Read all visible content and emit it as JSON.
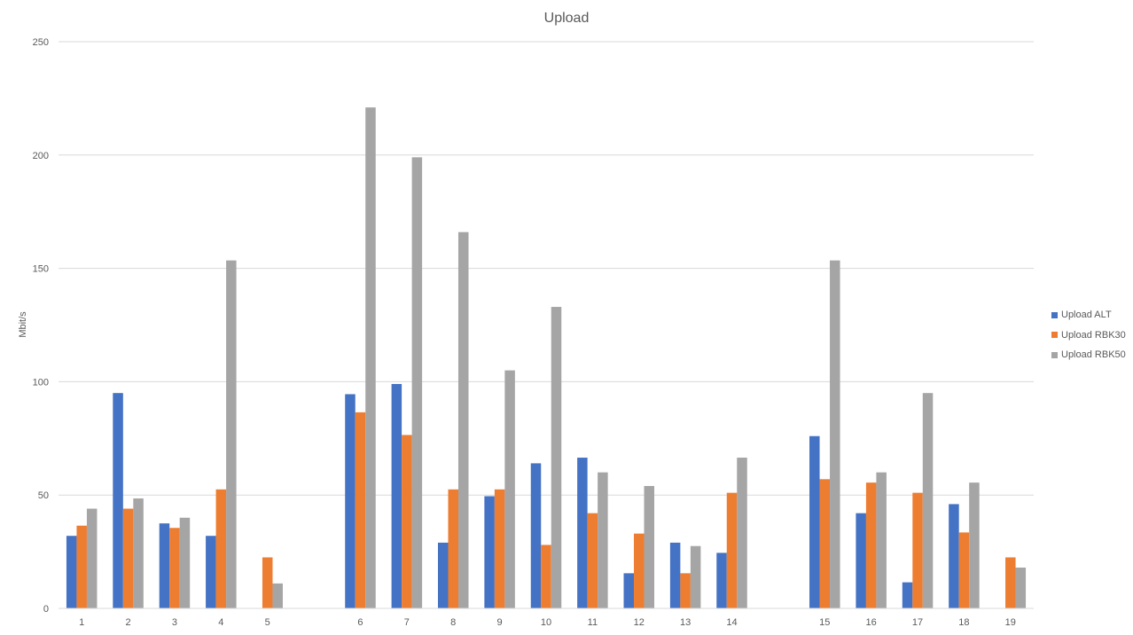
{
  "chart_data": {
    "type": "bar",
    "title": "Upload",
    "xlabel": "",
    "ylabel": "Mbit/s",
    "ylim": [
      0,
      250
    ],
    "yticks": [
      0,
      50,
      100,
      150,
      200,
      250
    ],
    "grid": true,
    "legend_position": "right",
    "categories": [
      "1",
      "2",
      "3",
      "4",
      "5",
      "",
      "6",
      "7",
      "8",
      "9",
      "10",
      "11",
      "12",
      "13",
      "14",
      "",
      "15",
      "16",
      "17",
      "18",
      "19"
    ],
    "series": [
      {
        "name": "Upload ALT",
        "color": "#4472C4",
        "values": [
          32,
          95,
          37.5,
          32,
          null,
          null,
          94.5,
          99,
          29,
          49.5,
          64,
          66.5,
          15.5,
          29,
          24.5,
          null,
          76,
          42,
          11.5,
          46,
          null
        ]
      },
      {
        "name": "Upload RBK30",
        "color": "#ED7D31",
        "values": [
          36.5,
          44,
          35.5,
          52.5,
          22.5,
          null,
          86.5,
          76.5,
          52.5,
          52.5,
          28,
          42,
          33,
          15.5,
          51,
          null,
          57,
          55.5,
          51,
          33.5,
          22.5
        ]
      },
      {
        "name": "Upload RBK50",
        "color": "#A5A5A5",
        "values": [
          44,
          48.5,
          40,
          153.5,
          11,
          null,
          221,
          199,
          166,
          105,
          133,
          60,
          54,
          27.5,
          66.5,
          null,
          153.5,
          60,
          95,
          55.5,
          18
        ]
      }
    ]
  }
}
